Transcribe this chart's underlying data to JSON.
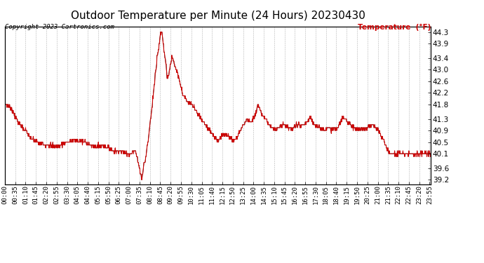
{
  "title": "Outdoor Temperature per Minute (24 Hours) 20230430",
  "copyright_text": "Copyright 2023 Cartronics.com",
  "legend_label": "Temperature  (°F)",
  "line_color": "#cc0000",
  "background_color": "#ffffff",
  "grid_color": "#aaaaaa",
  "ylim": [
    39.05,
    44.5
  ],
  "yticks": [
    39.2,
    39.6,
    40.1,
    40.5,
    40.9,
    41.3,
    41.8,
    42.2,
    42.6,
    43.0,
    43.4,
    43.9,
    44.3
  ],
  "title_fontsize": 11,
  "tick_fontsize": 6.5,
  "x_tick_interval": 35,
  "total_minutes": 1440
}
